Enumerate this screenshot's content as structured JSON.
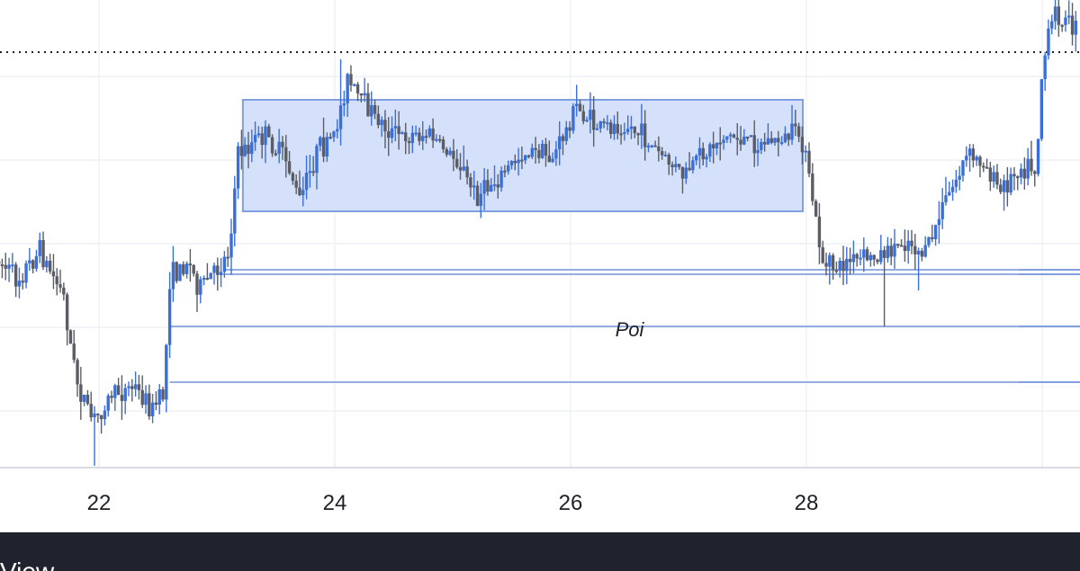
{
  "chart_data": {
    "type": "candlestick",
    "title": "",
    "xlabel": "",
    "ylabel": "",
    "x_ticks": [
      "22",
      "24",
      "26",
      "28"
    ],
    "x_range_days": [
      21.15,
      30.3
    ],
    "grid": true,
    "colors": {
      "up_candle": "#3b6fd8",
      "down_candle": "#5a5d66",
      "zone_fill": "#d3dffa",
      "zone_border": "#7f9fe0",
      "level_line": "#7f9fe0",
      "reference_line": "#1e2128",
      "grid": "#eceef2",
      "axis": "#d8dbe1"
    },
    "consolidation_box": {
      "start_day": 23.22,
      "end_day": 27.97,
      "top": 111,
      "bottom": 235
    },
    "reference_line": {
      "level": 58,
      "style": "dotted"
    },
    "levels": [
      {
        "value": 300,
        "start_day": 23.05
      },
      {
        "value": 305,
        "start_day": 23.05
      },
      {
        "value": 363,
        "start_day": 22.6
      },
      {
        "value": 425,
        "start_day": 22.6
      }
    ],
    "annotations": [
      {
        "text": "Poi",
        "day": 26.5,
        "value": 366
      }
    ],
    "price_path": [
      [
        21.15,
        290
      ],
      [
        21.3,
        310
      ],
      [
        21.5,
        280
      ],
      [
        21.7,
        330
      ],
      [
        21.8,
        420
      ],
      [
        21.95,
        470
      ],
      [
        22.1,
        440
      ],
      [
        22.3,
        430
      ],
      [
        22.45,
        455
      ],
      [
        22.55,
        440
      ],
      [
        22.6,
        310
      ],
      [
        22.75,
        290
      ],
      [
        22.85,
        320
      ],
      [
        23.0,
        300
      ],
      [
        23.1,
        280
      ],
      [
        23.18,
        170
      ],
      [
        23.4,
        150
      ],
      [
        23.6,
        180
      ],
      [
        23.7,
        225
      ],
      [
        23.85,
        170
      ],
      [
        24.0,
        150
      ],
      [
        24.1,
        90
      ],
      [
        24.3,
        125
      ],
      [
        24.5,
        150
      ],
      [
        24.8,
        150
      ],
      [
        25.05,
        180
      ],
      [
        25.2,
        220
      ],
      [
        25.4,
        195
      ],
      [
        25.6,
        170
      ],
      [
        25.85,
        175
      ],
      [
        26.05,
        120
      ],
      [
        26.2,
        140
      ],
      [
        26.5,
        140
      ],
      [
        26.75,
        170
      ],
      [
        26.95,
        195
      ],
      [
        27.1,
        175
      ],
      [
        27.3,
        150
      ],
      [
        27.6,
        160
      ],
      [
        27.95,
        150
      ],
      [
        28.05,
        220
      ],
      [
        28.15,
        300
      ],
      [
        28.4,
        290
      ],
      [
        28.6,
        285
      ],
      [
        28.7,
        280
      ],
      [
        28.85,
        265
      ],
      [
        29.0,
        285
      ],
      [
        29.1,
        250
      ],
      [
        29.25,
        205
      ],
      [
        29.35,
        175
      ],
      [
        29.5,
        180
      ],
      [
        29.65,
        215
      ],
      [
        29.8,
        185
      ],
      [
        29.95,
        185
      ],
      [
        30.0,
        75
      ],
      [
        30.1,
        15
      ],
      [
        30.3,
        35
      ]
    ],
    "extreme_wicks": [
      {
        "day": 24.05,
        "high": 66
      },
      {
        "day": 25.25,
        "low": 235
      },
      {
        "day": 28.65,
        "low": 363
      },
      {
        "day": 28.95,
        "low": 323
      },
      {
        "day": 21.95,
        "low": 518
      }
    ]
  },
  "bottom_bar": {
    "label": "View"
  }
}
